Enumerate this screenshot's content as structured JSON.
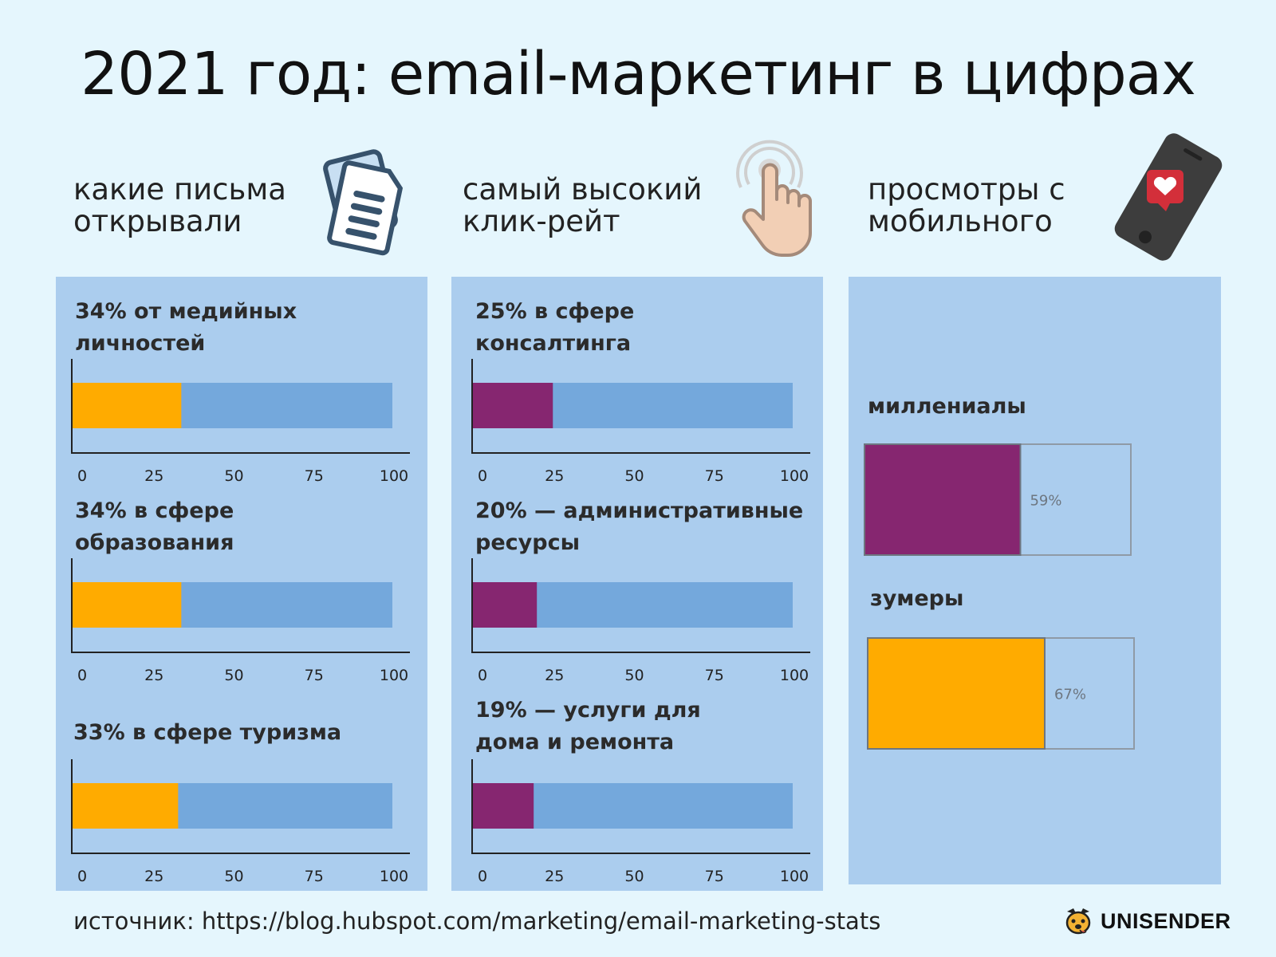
{
  "title": "2021 год: email-маркетинг в цифрах",
  "columns": [
    {
      "heading_line1": "какие письма",
      "heading_line2": "открывали",
      "icon": "document-icon",
      "bar_color": "#ffab00",
      "items": [
        {
          "label_line1": "34% от медийных",
          "label_line2": "личностей"
        },
        {
          "label_line1": "34% в сфере",
          "label_line2": "образования"
        },
        {
          "label_line1": "33% в сфере туризма",
          "label_line2": ""
        }
      ]
    },
    {
      "heading_line1": "самый высокий",
      "heading_line2": "клик-рейт",
      "icon": "tap-finger-icon",
      "bar_color": "#862670",
      "items": [
        {
          "label_line1": "25% в сфере",
          "label_line2": "консалтинга"
        },
        {
          "label_line1": "20% — административные",
          "label_line2": "ресурсы"
        },
        {
          "label_line1": "19% — услуги для",
          "label_line2": "дома и ремонта"
        }
      ]
    },
    {
      "heading_line1": "просмотры с",
      "heading_line2": "мобильного",
      "icon": "phone-heart-icon",
      "items": [
        {
          "label": "миллениалы"
        },
        {
          "label": "зумеры"
        }
      ]
    }
  ],
  "chart_data": [
    {
      "type": "bar",
      "orientation": "horizontal",
      "value": 34,
      "xlim": [
        0,
        100
      ],
      "xticks": [
        "0",
        "25",
        "50",
        "75",
        "100"
      ],
      "color": "#ffab00"
    },
    {
      "type": "bar",
      "orientation": "horizontal",
      "value": 34,
      "xlim": [
        0,
        100
      ],
      "xticks": [
        "0",
        "25",
        "50",
        "75",
        "100"
      ],
      "color": "#ffab00"
    },
    {
      "type": "bar",
      "orientation": "horizontal",
      "value": 33,
      "xlim": [
        0,
        100
      ],
      "xticks": [
        "0",
        "25",
        "50",
        "75",
        "100"
      ],
      "color": "#ffab00"
    },
    {
      "type": "bar",
      "orientation": "horizontal",
      "value": 25,
      "xlim": [
        0,
        100
      ],
      "xticks": [
        "0",
        "25",
        "50",
        "75",
        "100"
      ],
      "color": "#862670"
    },
    {
      "type": "bar",
      "orientation": "horizontal",
      "value": 20,
      "xlim": [
        0,
        100
      ],
      "xticks": [
        "0",
        "25",
        "50",
        "75",
        "100"
      ],
      "color": "#862670"
    },
    {
      "type": "bar",
      "orientation": "horizontal",
      "value": 19,
      "xlim": [
        0,
        100
      ],
      "xticks": [
        "0",
        "25",
        "50",
        "75",
        "100"
      ],
      "color": "#862670"
    },
    {
      "type": "bar",
      "orientation": "horizontal",
      "value": 59,
      "value_label": "59%",
      "color": "#862670"
    },
    {
      "type": "bar",
      "orientation": "horizontal",
      "value": 67,
      "value_label": "67%",
      "color": "#ffab00"
    }
  ],
  "colors": {
    "background": "#e5f6fd",
    "panel": "#abcdee",
    "track": "#74a8dc",
    "orange": "#ffab00",
    "purple": "#862670"
  },
  "footer": {
    "source": "источник: https://blog.hubspot.com/marketing/email-marketing-stats",
    "brand": "UNISENDER",
    "brand_icon": "dog-logo-icon"
  }
}
